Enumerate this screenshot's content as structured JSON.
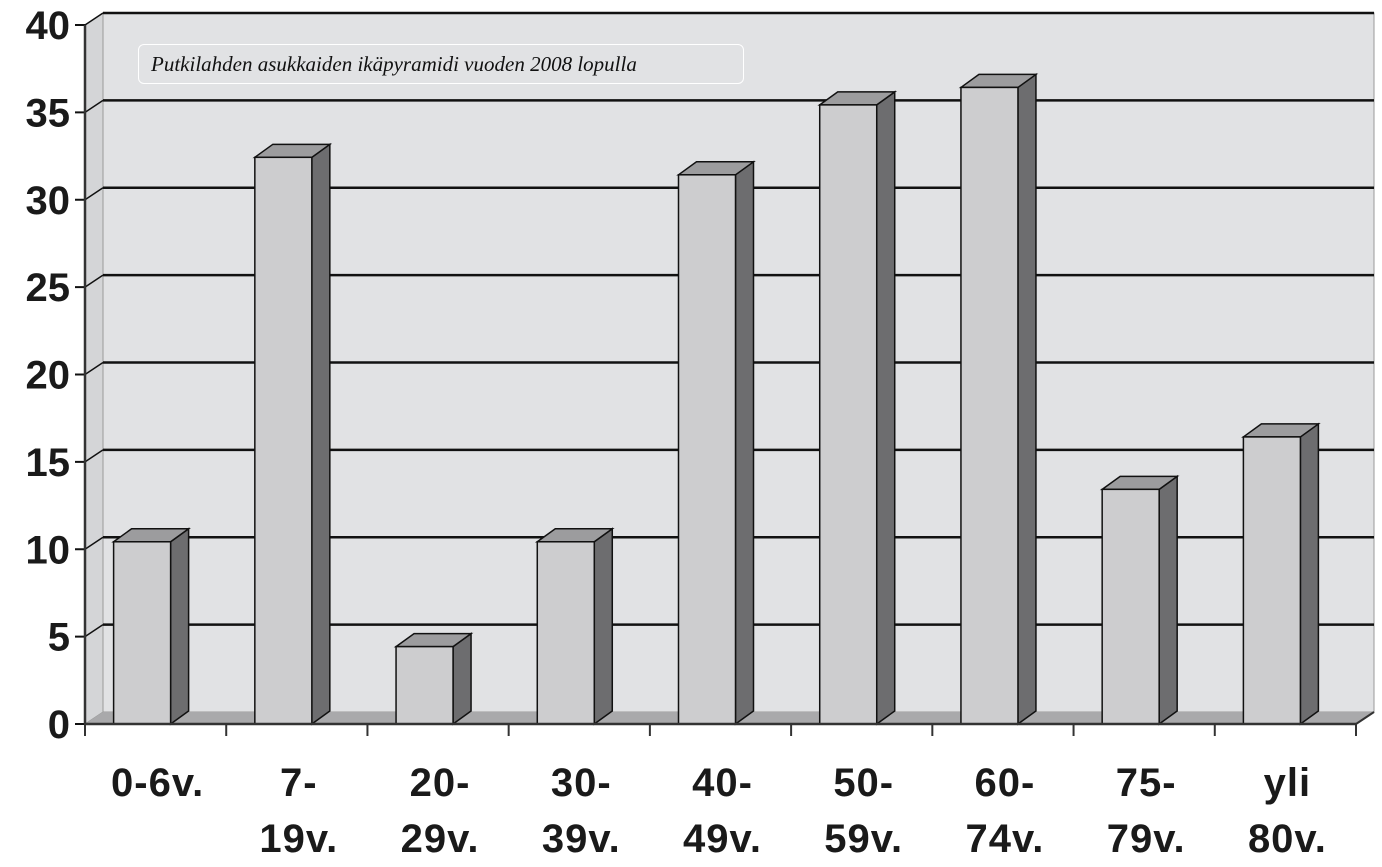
{
  "colors": {
    "wall": "#e1e2e4",
    "floor": "#a9a9ab",
    "bar_front": "#cdcdcf",
    "bar_top": "#9c9c9e",
    "bar_side": "#6d6d6f",
    "grid": "#111111",
    "text": "#1a1a1a"
  },
  "chart_data": {
    "type": "bar",
    "title": "Putkilahden asukkaiden ikäpyramidi vuoden 2008 lopulla",
    "categories": [
      [
        "0-6v."
      ],
      [
        "7-",
        "19v."
      ],
      [
        "20-",
        "29v."
      ],
      [
        "30-",
        "39v."
      ],
      [
        "40-",
        "49v."
      ],
      [
        "50-",
        "59v."
      ],
      [
        "60-",
        "74v."
      ],
      [
        "75-",
        "79v."
      ],
      [
        "yli",
        "80v."
      ]
    ],
    "values": [
      11,
      33,
      5,
      11,
      32,
      36,
      37,
      14,
      17
    ],
    "ylim": [
      0,
      40
    ],
    "yticks": [
      0,
      5,
      10,
      15,
      20,
      25,
      30,
      35,
      40
    ],
    "grid": true,
    "legend": "none"
  }
}
